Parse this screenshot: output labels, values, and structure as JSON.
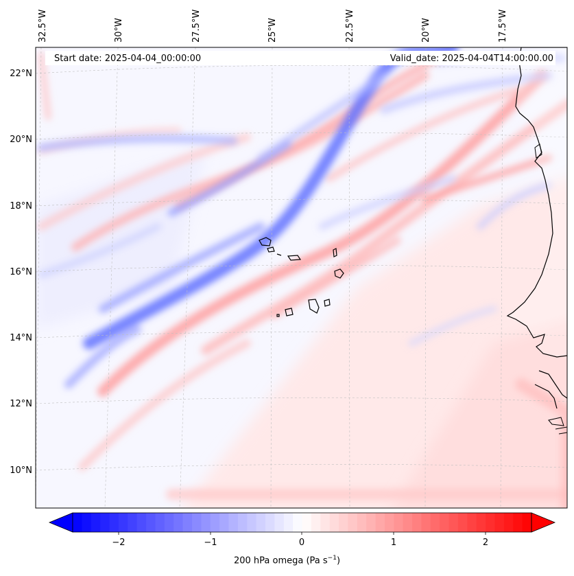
{
  "header": {
    "start_date": "Start date: 2025-04-04_00:00:00",
    "valid_date": "Valid_date: 2025-04-04T14:00:00.00"
  },
  "axes": {
    "lon_labels": [
      "32.5°W",
      "30°W",
      "27.5°W",
      "25°W",
      "22.5°W",
      "20°W",
      "17.5°W"
    ],
    "lat_labels": [
      "22°N",
      "20°N",
      "18°N",
      "16°N",
      "14°N",
      "12°N",
      "10°N"
    ]
  },
  "colorbar": {
    "label": "200 hPa omega (Pa s",
    "label_sup": "−1",
    "label_end": ")",
    "ticks": [
      "−2",
      "−1",
      "0",
      "1",
      "2"
    ],
    "min": -2.5,
    "max": 2.5,
    "low_color": "#0000ff",
    "mid_color": "#ffffff",
    "high_color": "#ff0000"
  },
  "colors": {
    "ascent_band": "#5d6cff",
    "descent_band": "#ff8f8f",
    "coast": "#000000",
    "grid": "#bfbfbf"
  }
}
